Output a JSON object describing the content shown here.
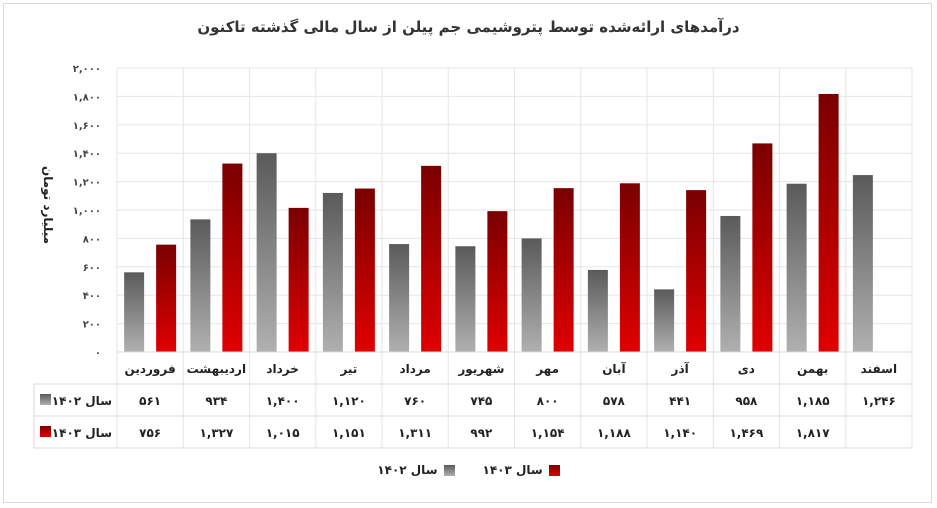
{
  "chart_data": {
    "type": "bar",
    "title": "درآمدهای ارائه‌شده توسط پتروشیمی جم پیلن از سال مالی گذشته تاکنون",
    "ylabel": "میلیارد تومان",
    "ylim": [
      0,
      2000
    ],
    "yticks": [
      "۰",
      "۲۰۰",
      "۴۰۰",
      "۶۰۰",
      "۸۰۰",
      "۱,۰۰۰",
      "۱,۲۰۰",
      "۱,۴۰۰",
      "۱,۶۰۰",
      "۱,۸۰۰",
      "۲,۰۰۰"
    ],
    "yticks_values": [
      0,
      200,
      400,
      600,
      800,
      1000,
      1200,
      1400,
      1600,
      1800,
      2000
    ],
    "grid": true,
    "legend_position": "bottom",
    "categories": [
      "فروردین",
      "اردیبهشت",
      "خرداد",
      "تیر",
      "مرداد",
      "شهریور",
      "مهر",
      "آبان",
      "آذر",
      "دی",
      "بهمن",
      "اسفند"
    ],
    "series": [
      {
        "name": "سال ۱۴۰۲",
        "color": "#808080",
        "values": [
          561,
          934,
          1400,
          1120,
          760,
          745,
          800,
          578,
          441,
          958,
          1185,
          1246
        ],
        "labels": [
          "۵۶۱",
          "۹۳۴",
          "۱,۴۰۰",
          "۱,۱۲۰",
          "۷۶۰",
          "۷۴۵",
          "۸۰۰",
          "۵۷۸",
          "۴۴۱",
          "۹۵۸",
          "۱,۱۸۵",
          "۱,۲۴۶"
        ]
      },
      {
        "name": "سال ۱۴۰۳",
        "color": "#c00000",
        "values": [
          756,
          1327,
          1015,
          1151,
          1311,
          992,
          1154,
          1188,
          1140,
          1469,
          1817,
          null
        ],
        "labels": [
          "۷۵۶",
          "۱,۳۲۷",
          "۱,۰۱۵",
          "۱,۱۵۱",
          "۱,۳۱۱",
          "۹۹۲",
          "۱,۱۵۴",
          "۱,۱۸۸",
          "۱,۱۴۰",
          "۱,۴۶۹",
          "۱,۸۱۷",
          ""
        ]
      }
    ]
  }
}
